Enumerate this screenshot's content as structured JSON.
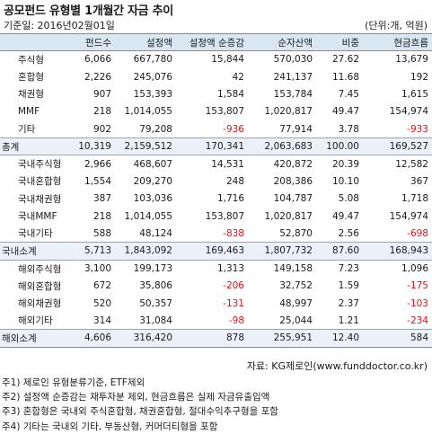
{
  "title": "공모펀드 유형별 1개월간 자금 추이",
  "base_date": "기준일: 2016년02월01일",
  "unit": "(단위:개, 억원)",
  "headers": [
    "",
    "펀드수",
    "설정액",
    "설정액 순증감",
    "순자산액",
    "비중",
    "현금흐름"
  ],
  "rows": [
    {
      "cells": [
        "주식형",
        "6,066",
        "667,780",
        "15,844",
        "570,030",
        "27.62",
        "13,679"
      ]
    },
    {
      "cells": [
        "혼합형",
        "2,226",
        "245,076",
        "42",
        "241,137",
        "11.68",
        "192"
      ]
    },
    {
      "cells": [
        "채권형",
        "907",
        "153,393",
        "1,584",
        "153,784",
        "7.45",
        "1,615"
      ]
    },
    {
      "cells": [
        "MMF",
        "218",
        "1,014,055",
        "153,807",
        "1,020,817",
        "49.47",
        "154,974"
      ]
    },
    {
      "cells": [
        "기타",
        "902",
        "79,208",
        "-936",
        "77,914",
        "3.78",
        "-933"
      ]
    },
    {
      "cells": [
        "총계",
        "10,319",
        "2,159,512",
        "170,341",
        "2,063,683",
        "100.00",
        "169,527"
      ],
      "subtotal": true
    },
    {
      "cells": [
        "국내주식형",
        "2,966",
        "468,607",
        "14,531",
        "420,872",
        "20.39",
        "12,582"
      ]
    },
    {
      "cells": [
        "국내혼합형",
        "1,554",
        "209,270",
        "248",
        "208,386",
        "10.10",
        "367"
      ]
    },
    {
      "cells": [
        "국내채권형",
        "387",
        "103,036",
        "1,716",
        "104,787",
        "5.08",
        "1,718"
      ]
    },
    {
      "cells": [
        "국내MMF",
        "218",
        "1,014,055",
        "153,807",
        "1,020,817",
        "49.47",
        "154,974"
      ]
    },
    {
      "cells": [
        "국내기타",
        "588",
        "48,124",
        "-838",
        "52,870",
        "2.56",
        "-698"
      ]
    },
    {
      "cells": [
        "국내소계",
        "5,713",
        "1,843,092",
        "169,463",
        "1,807,732",
        "87.60",
        "168,943"
      ],
      "subtotal": true
    },
    {
      "cells": [
        "해외주식형",
        "3,100",
        "199,173",
        "1,313",
        "149,158",
        "7.23",
        "1,096"
      ]
    },
    {
      "cells": [
        "해외혼합형",
        "672",
        "35,806",
        "-206",
        "32,752",
        "1.59",
        "-175"
      ]
    },
    {
      "cells": [
        "해외채권형",
        "520",
        "50,357",
        "-131",
        "48,997",
        "2.37",
        "-103"
      ]
    },
    {
      "cells": [
        "해외기타",
        "314",
        "31,084",
        "-98",
        "25,044",
        "1.21",
        "-234"
      ]
    },
    {
      "cells": [
        "해외소계",
        "4,606",
        "316,420",
        "878",
        "255,951",
        "12.40",
        "584"
      ],
      "subtotal": true
    }
  ],
  "source": "자료: KG제로인(www.funddoctor.co.kr)",
  "notes": [
    "주1) 제로인 유형분류기준, ETF제외",
    "주2) 설정액 순증감는 재투자분 제외, 현금흐름은 실제 자금유출입액",
    "주3) 혼합형은 국내외 주식혼합형, 채권혼합형, 절대수익추구형을 포함",
    "주4) 기타는 국내외 기타, 부동산형, 커머더티형을 포함"
  ],
  "colors": {
    "header_bg": "#d9e7f3",
    "subtotal_bg": "#eaf1f8",
    "negative": "#e0121c"
  }
}
